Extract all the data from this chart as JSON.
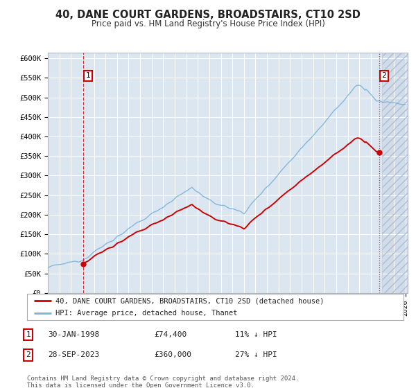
{
  "title": "40, DANE COURT GARDENS, BROADSTAIRS, CT10 2SD",
  "subtitle": "Price paid vs. HM Land Registry's House Price Index (HPI)",
  "background_color": "#dce6f1",
  "grid_color": "#ffffff",
  "hpi_color": "#7ab3d9",
  "price_color": "#cc0000",
  "sale1_yr": 1998.083,
  "sale2_yr": 2023.75,
  "sale1_price": 74400,
  "sale2_price": 360000,
  "legend_line1": "40, DANE COURT GARDENS, BROADSTAIRS, CT10 2SD (detached house)",
  "legend_line2": "HPI: Average price, detached house, Thanet",
  "footnote": "Contains HM Land Registry data © Crown copyright and database right 2024.\nThis data is licensed under the Open Government Licence v3.0.",
  "hatch_start": 2024.0,
  "xmin": 1995,
  "xmax": 2026,
  "ymin": 0,
  "ymax": 600000
}
